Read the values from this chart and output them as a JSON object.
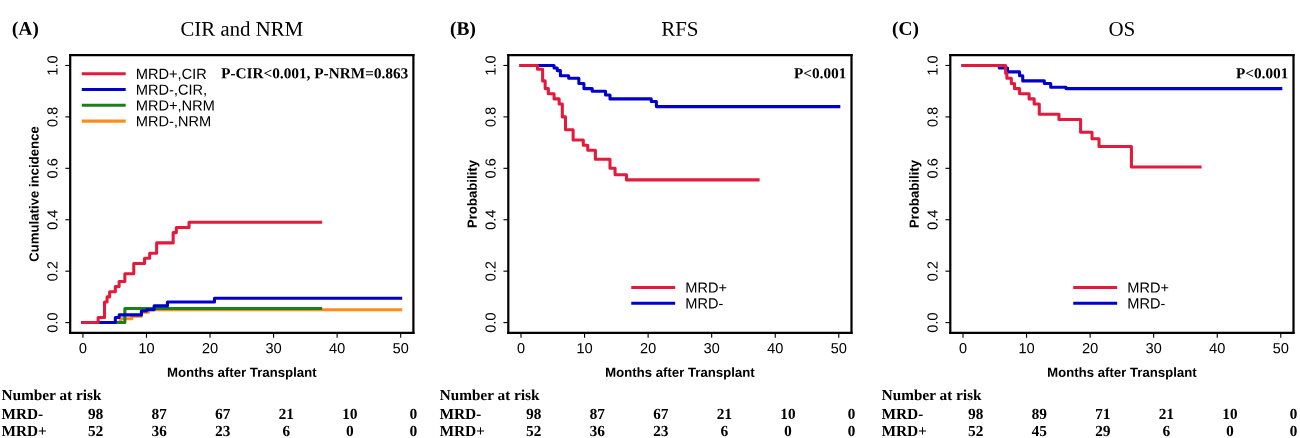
{
  "chart_data": [
    {
      "type": "step",
      "title": "CIR and NRM",
      "xlabel": "Months after Transplant",
      "ylabel": "Cumulative incidence",
      "xlim": [
        -2,
        52
      ],
      "xticks": [
        0,
        10,
        20,
        30,
        40,
        50
      ],
      "ylim": [
        -0.04,
        1.04
      ],
      "yticks": [
        {
          "value": 0,
          "label": "0.0"
        },
        {
          "value": 0.2,
          "label": "0.2"
        },
        {
          "value": 0.4,
          "label": "0.4"
        },
        {
          "value": 0.6,
          "label": "0.6"
        },
        {
          "value": 0.8,
          "label": "0.8"
        },
        {
          "value": 1,
          "label": "1.0"
        }
      ],
      "legend": "top left",
      "series": [
        {
          "name": "MRD+,CIR",
          "color": "#e31a3c",
          "x": [
            0,
            2.4,
            3.4,
            3.8,
            4.2,
            5.1,
            5.7,
            6.6,
            8.0,
            9.7,
            10.5,
            11.6,
            14.2,
            14.7,
            16.7,
            37.4
          ],
          "values": [
            0,
            0.02,
            0.08,
            0.1,
            0.12,
            0.14,
            0.16,
            0.19,
            0.23,
            0.25,
            0.27,
            0.31,
            0.35,
            0.37,
            0.39,
            0.39
          ]
        },
        {
          "name": "MRD-,CIR,",
          "color": "#0000cc",
          "x": [
            0,
            5.1,
            5.7,
            9.2,
            10.0,
            11.2,
            13.3,
            20.7,
            50
          ],
          "values": [
            0,
            0.02,
            0.03,
            0.045,
            0.05,
            0.065,
            0.08,
            0.095,
            0.095
          ]
        },
        {
          "name": "MRD+,NRM",
          "color": "#1a801a",
          "x": [
            0,
            6.6,
            37.4
          ],
          "values": [
            0,
            0.055,
            0.055
          ]
        },
        {
          "name": "MRD-,NRM",
          "color": "#ff8c1a",
          "x": [
            0,
            5.9,
            7.7,
            9.2,
            10.3,
            50
          ],
          "values": [
            0,
            0.015,
            0.025,
            0.04,
            0.05,
            0.05
          ]
        }
      ],
      "annotations": [
        "(A)",
        "P-CIR<0.001, P-NRM=0.863",
        "Number at risk",
        "MRD-",
        "98",
        "87",
        "67",
        "21",
        "10",
        "0",
        "MRD+",
        "52",
        "36",
        "23",
        "6",
        "0",
        "0"
      ]
    },
    {
      "type": "step",
      "title": "RFS",
      "xlabel": "Months after Transplant",
      "ylabel": "Probability",
      "xlim": [
        -2,
        52
      ],
      "xticks": [
        0,
        10,
        20,
        30,
        40,
        50
      ],
      "ylim": [
        -0.04,
        1.04
      ],
      "yticks": [
        {
          "value": 0,
          "label": "0.0"
        },
        {
          "value": 0.2,
          "label": "0.2"
        },
        {
          "value": 0.4,
          "label": "0.4"
        },
        {
          "value": 0.6,
          "label": "0.6"
        },
        {
          "value": 0.8,
          "label": "0.8"
        },
        {
          "value": 1,
          "label": "1.0"
        }
      ],
      "legend": "bottom",
      "series": [
        {
          "name": "MRD+",
          "color": "#e31a3c",
          "x": [
            0,
            2.6,
            3.4,
            3.8,
            4.3,
            5.2,
            6.0,
            6.5,
            7.0,
            8.2,
            9.8,
            10.5,
            11.7,
            14.0,
            14.8,
            16.6,
            37.3
          ],
          "values": [
            1,
            0.985,
            0.94,
            0.91,
            0.89,
            0.87,
            0.85,
            0.8,
            0.75,
            0.71,
            0.69,
            0.67,
            0.635,
            0.6,
            0.575,
            0.555,
            0.555
          ]
        },
        {
          "name": "MRD-",
          "color": "#0000cc",
          "x": [
            0,
            5.2,
            5.7,
            6.2,
            7.5,
            9.1,
            9.9,
            11.2,
            13.3,
            14.0,
            20.5,
            21.3,
            50
          ],
          "values": [
            1,
            0.99,
            0.98,
            0.96,
            0.95,
            0.93,
            0.91,
            0.9,
            0.885,
            0.87,
            0.86,
            0.84,
            0.84
          ]
        }
      ],
      "annotations": [
        "(B)",
        "P<0.001",
        "Number at risk",
        "MRD-",
        "98",
        "87",
        "67",
        "21",
        "10",
        "0",
        "MRD+",
        "52",
        "36",
        "23",
        "6",
        "0",
        "0"
      ]
    },
    {
      "type": "step",
      "title": "OS",
      "xlabel": "Months after Transplant",
      "ylabel": "Probability",
      "xlim": [
        -2,
        52
      ],
      "xticks": [
        0,
        10,
        20,
        30,
        40,
        50
      ],
      "ylim": [
        -0.04,
        1.04
      ],
      "yticks": [
        {
          "value": 0,
          "label": "0.0"
        },
        {
          "value": 0.2,
          "label": "0.2"
        },
        {
          "value": 0.4,
          "label": "0.4"
        },
        {
          "value": 0.6,
          "label": "0.6"
        },
        {
          "value": 0.8,
          "label": "0.8"
        },
        {
          "value": 1,
          "label": "1.0"
        }
      ],
      "legend": "bottom",
      "series": [
        {
          "name": "MRD+",
          "color": "#e31a3c",
          "x": [
            0,
            6.7,
            6.9,
            7.6,
            8.1,
            8.9,
            10.4,
            11.2,
            12.0,
            15.1,
            18.5,
            20.3,
            21.4,
            26.5,
            37.3
          ],
          "values": [
            1,
            0.97,
            0.95,
            0.93,
            0.91,
            0.89,
            0.87,
            0.85,
            0.81,
            0.79,
            0.74,
            0.715,
            0.685,
            0.605,
            0.605
          ]
        },
        {
          "name": "MRD-",
          "color": "#0000cc",
          "x": [
            0,
            5.7,
            7.0,
            8.9,
            9.4,
            12.8,
            13.8,
            16.2,
            50
          ],
          "values": [
            1,
            0.99,
            0.975,
            0.96,
            0.94,
            0.93,
            0.915,
            0.91,
            0.91
          ]
        }
      ],
      "annotations": [
        "(C)",
        "P<0.001",
        "Number at risk",
        "MRD-",
        "98",
        "89",
        "71",
        "21",
        "10",
        "0",
        "MRD+",
        "52",
        "45",
        "29",
        "6",
        "0",
        "0"
      ]
    }
  ]
}
